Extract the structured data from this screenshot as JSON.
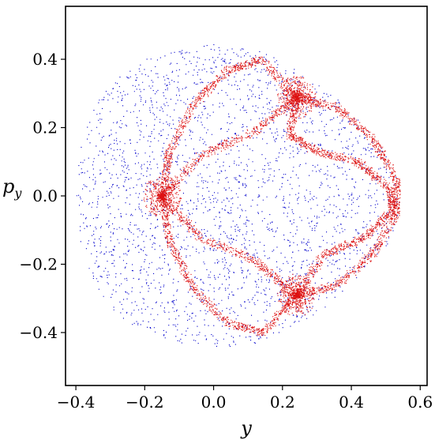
{
  "chart_data": {
    "type": "scatter",
    "title": "",
    "xlabel": "y",
    "ylabel": "p_y",
    "xlim": [
      -0.43,
      0.62
    ],
    "ylim": [
      -0.555,
      0.555
    ],
    "x_ticks": [
      {
        "value": -0.4,
        "label": "−0.4"
      },
      {
        "value": -0.2,
        "label": "−0.2"
      },
      {
        "value": 0.0,
        "label": "0.0"
      },
      {
        "value": 0.2,
        "label": "0.2"
      },
      {
        "value": 0.4,
        "label": "0.4"
      },
      {
        "value": 0.6,
        "label": "0.6"
      }
    ],
    "y_ticks": [
      {
        "value": 0.4,
        "label": "0.4"
      },
      {
        "value": 0.2,
        "label": "0.2"
      },
      {
        "value": 0.0,
        "label": "0.0"
      },
      {
        "value": -0.2,
        "label": "−0.2"
      },
      {
        "value": -0.4,
        "label": "−0.4"
      }
    ],
    "grid": false,
    "legend": "none",
    "colors": {
      "regular_orbits": "#0000cc",
      "chaotic_layer": "#dd1111"
    },
    "series": [
      {
        "kind": "regular",
        "color": "#0000cc",
        "boundary": [
          [
            0.0,
            0.445
          ],
          [
            0.12,
            0.43
          ],
          [
            0.22,
            0.39
          ],
          [
            0.32,
            0.32
          ],
          [
            0.42,
            0.23
          ],
          [
            0.49,
            0.14
          ],
          [
            0.53,
            0.06
          ],
          [
            0.545,
            0.0
          ],
          [
            0.535,
            -0.07
          ],
          [
            0.5,
            -0.15
          ],
          [
            0.42,
            -0.24
          ],
          [
            0.32,
            -0.33
          ],
          [
            0.22,
            -0.39
          ],
          [
            0.12,
            -0.43
          ],
          [
            0.0,
            -0.445
          ],
          [
            -0.1,
            -0.43
          ],
          [
            -0.2,
            -0.4
          ],
          [
            -0.29,
            -0.34
          ],
          [
            -0.35,
            -0.26
          ],
          [
            -0.39,
            -0.13
          ],
          [
            -0.4,
            0.0
          ],
          [
            -0.39,
            0.13
          ],
          [
            -0.35,
            0.26
          ],
          [
            -0.29,
            0.34
          ],
          [
            -0.2,
            0.4
          ],
          [
            -0.1,
            0.43
          ],
          [
            0.0,
            0.445
          ]
        ],
        "islands": [
          {
            "center": [
              0.27,
              0.0
            ],
            "ax": 0.21,
            "ay": 0.22
          },
          {
            "center": [
              0.0,
              0.23
            ],
            "ax": 0.14,
            "ay": 0.12
          },
          {
            "center": [
              0.0,
              -0.23
            ],
            "ax": 0.14,
            "ay": 0.12
          }
        ]
      },
      {
        "kind": "separatrix",
        "color": "#dd1111",
        "hyperbolic_points": [
          [
            -0.15,
            0.0
          ],
          [
            0.24,
            0.29
          ],
          [
            0.24,
            -0.29
          ]
        ],
        "inner_loop": [
          [
            -0.15,
            0.0
          ],
          [
            -0.04,
            0.12
          ],
          [
            0.12,
            0.19
          ],
          [
            0.24,
            0.29
          ],
          [
            0.22,
            0.18
          ],
          [
            0.3,
            0.13
          ],
          [
            0.42,
            0.1
          ],
          [
            0.51,
            0.02
          ],
          [
            0.52,
            -0.04
          ],
          [
            0.44,
            -0.12
          ],
          [
            0.32,
            -0.17
          ],
          [
            0.24,
            -0.29
          ],
          [
            0.12,
            -0.19
          ],
          [
            -0.04,
            -0.12
          ],
          [
            -0.15,
            0.0
          ]
        ],
        "outer_loop": [
          [
            -0.15,
            0.0
          ],
          [
            -0.13,
            0.13
          ],
          [
            -0.06,
            0.27
          ],
          [
            0.04,
            0.37
          ],
          [
            0.14,
            0.4
          ],
          [
            0.24,
            0.29
          ],
          [
            0.36,
            0.26
          ],
          [
            0.46,
            0.17
          ],
          [
            0.53,
            0.05
          ],
          [
            0.53,
            -0.05
          ],
          [
            0.46,
            -0.17
          ],
          [
            0.36,
            -0.26
          ],
          [
            0.24,
            -0.29
          ],
          [
            0.14,
            -0.4
          ],
          [
            0.04,
            -0.37
          ],
          [
            -0.06,
            -0.27
          ],
          [
            -0.13,
            -0.13
          ],
          [
            -0.15,
            0.0
          ]
        ]
      }
    ]
  }
}
